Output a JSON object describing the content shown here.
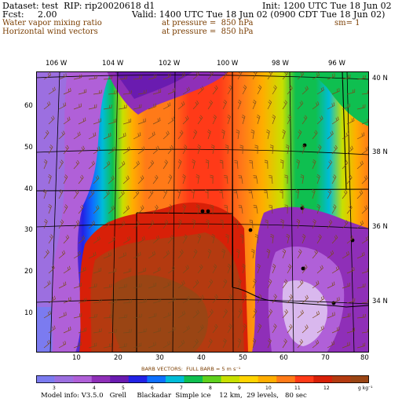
{
  "header": {
    "dataset": "Dataset: test  RIP: rip20020618 d1",
    "init": "Init: 1200 UTC Tue 18 Jun 02",
    "fcst": "Fcst:     2.00",
    "valid": "Valid: 1400 UTC Tue 18 Jun 02 (0900 CDT Tue 18 Jun 02)",
    "field1_name": "Water vapor mixing ratio",
    "field1_level": "at pressure =  850 hPa",
    "field1_extra": "sm= 1",
    "field2_name": "Horizontal wind vectors",
    "field2_level": "at pressure =  850 hPa"
  },
  "axes": {
    "lon_labels": [
      "106 W",
      "104 W",
      "102 W",
      "100 W",
      "98 W",
      "96 W"
    ],
    "lat_labels": [
      "40 N",
      "38 N",
      "36 N",
      "34 N"
    ],
    "x_ticks": [
      "10",
      "20",
      "30",
      "40",
      "50",
      "60",
      "70",
      "80"
    ],
    "y_ticks": [
      "10",
      "20",
      "30",
      "40",
      "50",
      "60"
    ]
  },
  "barb_note": "BARB VECTORS:  FULL BARB = 5 m s⁻¹",
  "colorbar": {
    "labels": [
      "3",
      "4",
      "5",
      "6",
      "7",
      "8",
      "9",
      "10",
      "11",
      "12",
      "g kg⁻¹"
    ],
    "colors": [
      "#7b7bf0",
      "#9c6fe0",
      "#b060d8",
      "#8f2fb8",
      "#6a1bb0",
      "#2222e6",
      "#0d70ff",
      "#00bcd8",
      "#0fbf50",
      "#5fd11e",
      "#c8e000",
      "#ffd400",
      "#ffad00",
      "#ff7a18",
      "#ff3a18",
      "#d82008",
      "#b43a10",
      "#9a4514"
    ]
  },
  "model_info": "Model info: V3.5.0   Grell     Blackadar  Simple ice    12 km,  29 levels,   80 sec",
  "palette": {
    "border": "#000000",
    "label_brown": "#7a3d00"
  }
}
